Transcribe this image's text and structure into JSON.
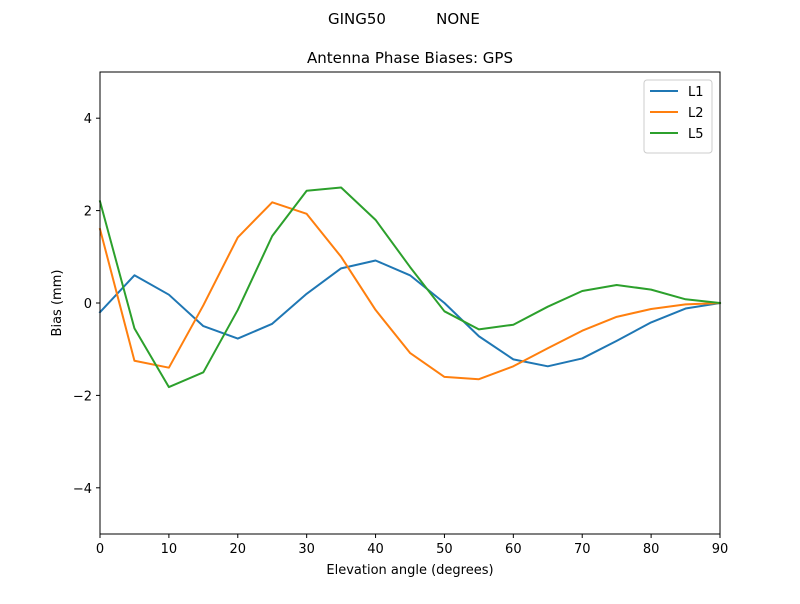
{
  "figure": {
    "suptitle_left": "GING50",
    "suptitle_right": "NONE"
  },
  "chart_data": {
    "type": "line",
    "title": "Antenna Phase Biases: GPS",
    "xlabel": "Elevation angle (degrees)",
    "ylabel": "Bias (mm)",
    "xlim": [
      0,
      90
    ],
    "ylim": [
      -5,
      5
    ],
    "xticks": [
      0,
      10,
      20,
      30,
      40,
      50,
      60,
      70,
      80,
      90
    ],
    "yticks": [
      -4,
      -2,
      0,
      2,
      4
    ],
    "ytick_labels": [
      "−4",
      "−2",
      "0",
      "2",
      "4"
    ],
    "legend_position": "top-right",
    "x": [
      0,
      5,
      10,
      15,
      20,
      25,
      30,
      35,
      40,
      45,
      50,
      55,
      60,
      65,
      70,
      75,
      80,
      85,
      90
    ],
    "series": [
      {
        "name": "L1",
        "color": "#1f77b4",
        "values": [
          -0.2,
          0.6,
          0.18,
          -0.5,
          -0.77,
          -0.45,
          0.2,
          0.75,
          0.92,
          0.6,
          0.0,
          -0.72,
          -1.22,
          -1.37,
          -1.2,
          -0.82,
          -0.42,
          -0.12,
          0.0
        ]
      },
      {
        "name": "L2",
        "color": "#ff7f0e",
        "values": [
          1.6,
          -1.25,
          -1.4,
          -0.05,
          1.42,
          2.18,
          1.93,
          1.0,
          -0.15,
          -1.08,
          -1.6,
          -1.65,
          -1.37,
          -0.98,
          -0.6,
          -0.3,
          -0.13,
          -0.03,
          0.0
        ]
      },
      {
        "name": "L5",
        "color": "#2ca02c",
        "values": [
          2.2,
          -0.55,
          -1.82,
          -1.5,
          -0.15,
          1.45,
          2.43,
          2.5,
          1.8,
          0.78,
          -0.18,
          -0.57,
          -0.47,
          -0.08,
          0.26,
          0.39,
          0.29,
          0.08,
          0.0
        ]
      }
    ]
  }
}
